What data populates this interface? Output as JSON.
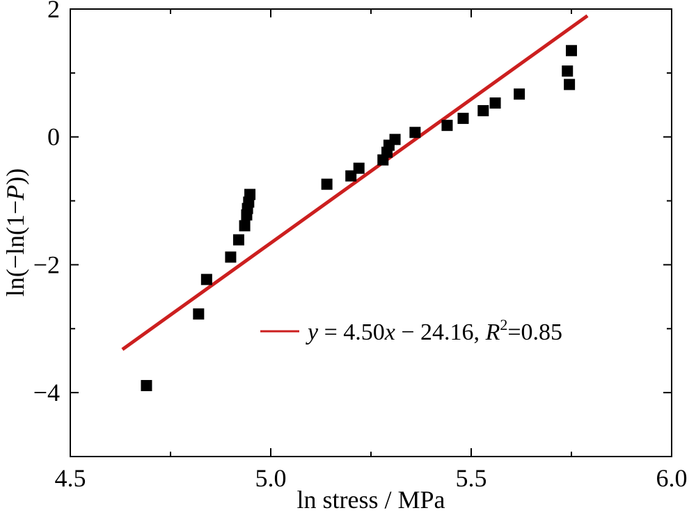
{
  "chart_data": {
    "type": "scatter",
    "xlabel": "ln stress / MPa",
    "ylabel": "ln(−ln(1−P))",
    "xlim": [
      4.5,
      6.0
    ],
    "ylim": [
      -5,
      2
    ],
    "x_ticks": [
      4.5,
      5.0,
      5.5,
      6.0
    ],
    "x_tick_labels": [
      "4.5",
      "5.0",
      "5.5",
      "6.0"
    ],
    "y_ticks": [
      -4,
      -2,
      0,
      2
    ],
    "y_tick_labels": [
      "−4",
      "−2",
      "0",
      "2"
    ],
    "grid": false,
    "legend_position": "lower-right",
    "marker_color": "#000000",
    "line_color": "#cc1f1f",
    "points": [
      {
        "x": 4.69,
        "y": -3.89
      },
      {
        "x": 4.82,
        "y": -2.77
      },
      {
        "x": 4.84,
        "y": -2.23
      },
      {
        "x": 4.9,
        "y": -1.88
      },
      {
        "x": 4.92,
        "y": -1.61
      },
      {
        "x": 4.935,
        "y": -1.39
      },
      {
        "x": 4.94,
        "y": -1.22
      },
      {
        "x": 4.942,
        "y": -1.12
      },
      {
        "x": 4.945,
        "y": -1.02
      },
      {
        "x": 4.948,
        "y": -0.9
      },
      {
        "x": 5.14,
        "y": -0.74
      },
      {
        "x": 5.2,
        "y": -0.61
      },
      {
        "x": 5.22,
        "y": -0.49
      },
      {
        "x": 5.28,
        "y": -0.36
      },
      {
        "x": 5.29,
        "y": -0.24
      },
      {
        "x": 5.295,
        "y": -0.13
      },
      {
        "x": 5.31,
        "y": -0.04
      },
      {
        "x": 5.36,
        "y": 0.07
      },
      {
        "x": 5.44,
        "y": 0.18
      },
      {
        "x": 5.48,
        "y": 0.29
      },
      {
        "x": 5.53,
        "y": 0.41
      },
      {
        "x": 5.56,
        "y": 0.53
      },
      {
        "x": 5.62,
        "y": 0.67
      },
      {
        "x": 5.74,
        "y": 1.03
      },
      {
        "x": 5.745,
        "y": 0.82
      },
      {
        "x": 5.75,
        "y": 1.35
      }
    ],
    "fit_line": {
      "slope": 4.5,
      "intercept": -24.16,
      "x_start": 4.63,
      "x_end": 5.79
    },
    "legend": {
      "y_var": "y",
      "equation_mid": " = 4.50",
      "x_var": "x",
      "equation_tail": " − 24.16, ",
      "r_var": "R",
      "r_exp": "2",
      "r_value": "=0.85"
    }
  }
}
